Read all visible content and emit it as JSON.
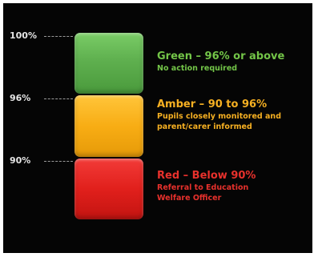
{
  "ticks": [
    {
      "label": "100%"
    },
    {
      "label": "96%"
    },
    {
      "label": "90%"
    }
  ],
  "bands": {
    "green": {
      "title": "Green – 96% or above",
      "subtitle_lines": [
        "No action required"
      ],
      "color": "#6ab85a"
    },
    "amber": {
      "title": "Amber – 90 to 96%",
      "subtitle_lines": [
        "Pupils closely monitored and",
        "parent/carer informed"
      ],
      "color": "#f8ad14"
    },
    "red": {
      "title": "Red – Below 90%",
      "subtitle_lines": [
        "Referral to Education",
        "Welfare Officer"
      ],
      "color": "#e1201c"
    }
  }
}
